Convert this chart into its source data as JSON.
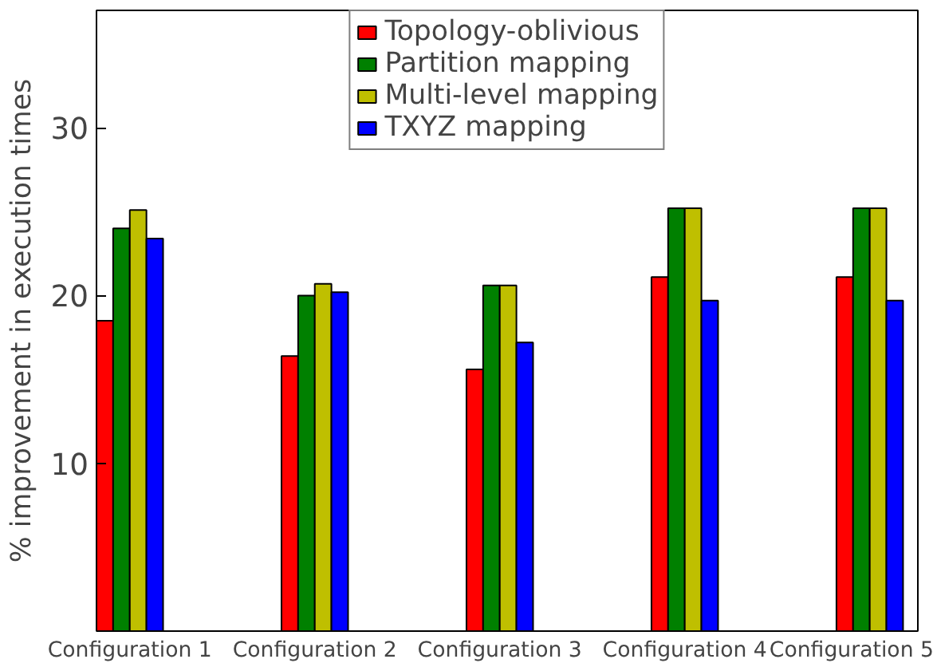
{
  "chart_data": {
    "type": "bar",
    "ylabel": "% improvement in execution times",
    "categories": [
      "Configuration 1",
      "Configuration 2",
      "Configuration 3",
      "Configuration 4",
      "Configuration 5"
    ],
    "series": [
      {
        "name": "Topology-oblivious",
        "color": "#ff0000",
        "values": [
          18.5,
          16.4,
          15.6,
          21.1,
          21.1
        ]
      },
      {
        "name": "Partition mapping",
        "color": "#008000",
        "values": [
          24.0,
          20.0,
          20.6,
          25.2,
          25.2
        ]
      },
      {
        "name": "Multi-level mapping",
        "color": "#bfbf00",
        "values": [
          25.1,
          20.7,
          20.6,
          25.2,
          25.2
        ]
      },
      {
        "name": "TXYZ mapping",
        "color": "#0000ff",
        "values": [
          23.4,
          20.2,
          17.2,
          19.7,
          19.7
        ]
      }
    ],
    "ylim": [
      0,
      37
    ],
    "yticks": [
      10,
      20,
      30
    ],
    "legend": "top",
    "grid": false
  }
}
